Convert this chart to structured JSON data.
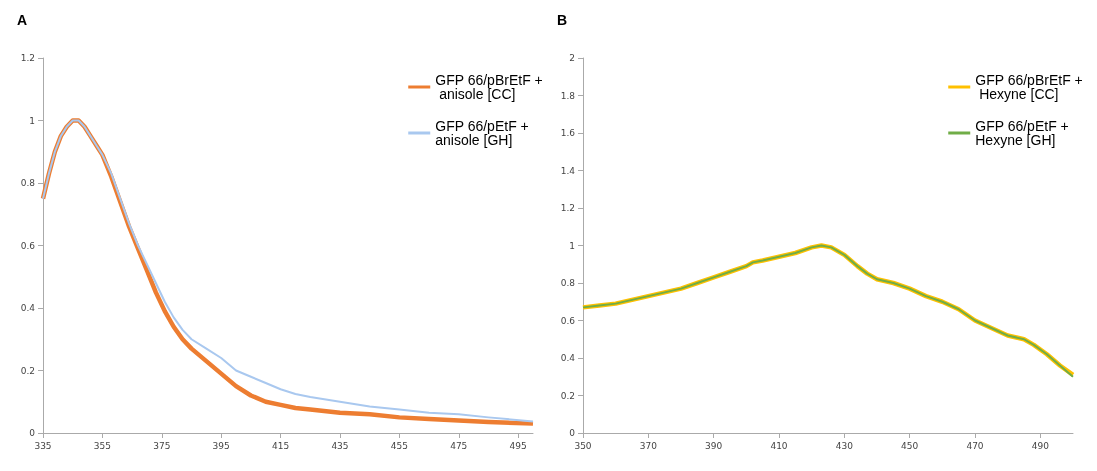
{
  "chart_data": [
    {
      "type": "line",
      "title": "A",
      "x": [
        335,
        337,
        339,
        341,
        343,
        345,
        347,
        349,
        351,
        353,
        355,
        358,
        361,
        364,
        367,
        370,
        373,
        376,
        379,
        382,
        385,
        390,
        395,
        400,
        405,
        410,
        415,
        420,
        425,
        435,
        445,
        455,
        465,
        475,
        485,
        500
      ],
      "xlim": [
        335,
        500
      ],
      "xticks": [
        335,
        355,
        375,
        395,
        415,
        435,
        455,
        475,
        495
      ],
      "ylim": [
        0,
        1.2
      ],
      "yticks": [
        0,
        0.2,
        0.4,
        0.6,
        0.8,
        1,
        1.2
      ],
      "grid": false,
      "legend": "right",
      "marker": "none",
      "line_style": "solid",
      "series": [
        {
          "name": "GFP 66/pBrEtF + anisole [CC]",
          "color": "#ed7d31",
          "values": [
            0.75,
            0.83,
            0.9,
            0.95,
            0.98,
            1.0,
            1.0,
            0.98,
            0.95,
            0.92,
            0.89,
            0.82,
            0.74,
            0.66,
            0.59,
            0.52,
            0.45,
            0.39,
            0.34,
            0.3,
            0.27,
            0.23,
            0.19,
            0.15,
            0.12,
            0.1,
            0.09,
            0.08,
            0.075,
            0.065,
            0.06,
            0.05,
            0.045,
            0.04,
            0.035,
            0.03
          ]
        },
        {
          "name": "GFP 66/pEtF + anisole [GH]",
          "color": "#a9c8ef",
          "values": [
            0.75,
            0.83,
            0.9,
            0.95,
            0.98,
            1.0,
            1.0,
            0.98,
            0.95,
            0.92,
            0.89,
            0.83,
            0.75,
            0.67,
            0.6,
            0.54,
            0.48,
            0.42,
            0.37,
            0.33,
            0.3,
            0.27,
            0.24,
            0.2,
            0.18,
            0.16,
            0.14,
            0.125,
            0.115,
            0.1,
            0.085,
            0.075,
            0.065,
            0.06,
            0.05,
            0.037
          ]
        }
      ]
    },
    {
      "type": "line",
      "title": "B",
      "x": [
        350,
        355,
        360,
        365,
        370,
        375,
        380,
        385,
        390,
        395,
        400,
        402,
        405,
        410,
        415,
        420,
        423,
        426,
        430,
        434,
        437,
        440,
        445,
        450,
        455,
        460,
        465,
        470,
        475,
        480,
        485,
        488,
        492,
        496,
        500
      ],
      "xlim": [
        350,
        500
      ],
      "xticks": [
        350,
        370,
        390,
        410,
        430,
        450,
        470,
        490
      ],
      "ylim": [
        0,
        2
      ],
      "yticks": [
        0,
        0.2,
        0.4,
        0.6,
        0.8,
        1,
        1.2,
        1.4,
        1.6,
        1.8,
        2
      ],
      "grid": false,
      "legend": "right",
      "marker": "none",
      "line_style": "solid",
      "series": [
        {
          "name": "GFP 66/pBrEtF + Hexyne [CC]",
          "color": "#ffc000",
          "values": [
            0.67,
            0.68,
            0.69,
            0.71,
            0.73,
            0.75,
            0.77,
            0.8,
            0.83,
            0.86,
            0.89,
            0.91,
            0.92,
            0.94,
            0.96,
            0.99,
            1.0,
            0.99,
            0.95,
            0.89,
            0.85,
            0.82,
            0.8,
            0.77,
            0.73,
            0.7,
            0.66,
            0.6,
            0.56,
            0.52,
            0.5,
            0.47,
            0.42,
            0.36,
            0.31
          ]
        },
        {
          "name": "GFP 66/pEtF + Hexyne [GH]",
          "color": "#70ad47",
          "values": [
            0.67,
            0.68,
            0.69,
            0.71,
            0.73,
            0.75,
            0.77,
            0.8,
            0.83,
            0.86,
            0.89,
            0.91,
            0.92,
            0.94,
            0.96,
            0.99,
            1.0,
            0.99,
            0.95,
            0.89,
            0.85,
            0.82,
            0.8,
            0.77,
            0.73,
            0.7,
            0.66,
            0.6,
            0.56,
            0.52,
            0.5,
            0.47,
            0.42,
            0.36,
            0.3
          ]
        }
      ]
    }
  ]
}
